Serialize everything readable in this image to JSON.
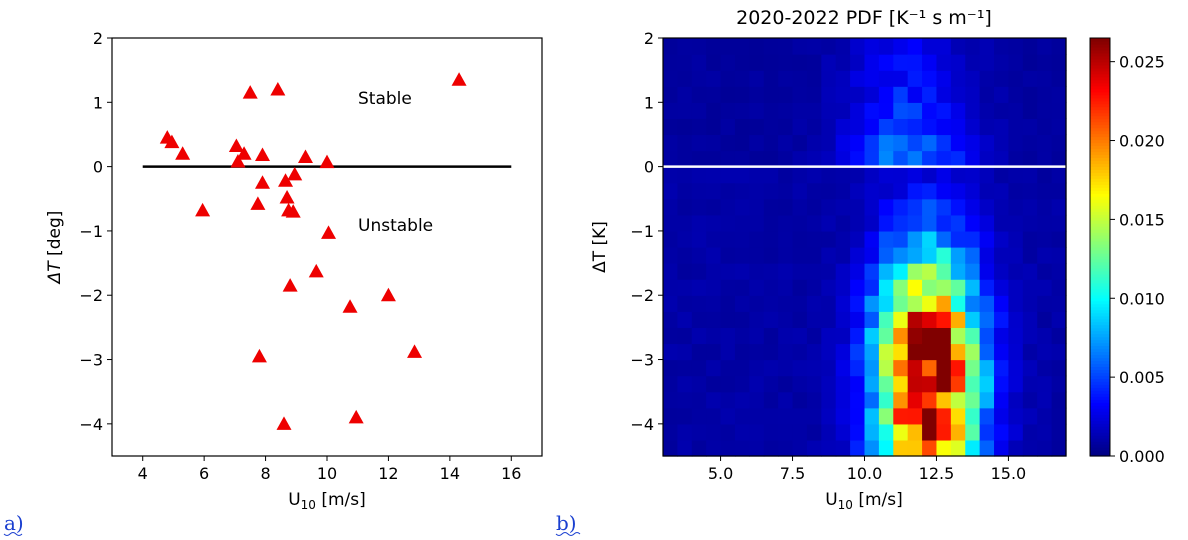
{
  "panel_a": {
    "letter": "a)",
    "annotation_stable": "Stable",
    "annotation_unstable": "Unstable",
    "xlabel_main": "U",
    "xlabel_sub": "10",
    "xlabel_unit": " [m/s]",
    "ylabel_symbol": "ΔT",
    "ylabel_unit": " [deg]"
  },
  "panel_b": {
    "letter": "b)",
    "title": "2020-2022 PDF [K⁻¹ s m⁻¹]",
    "xlabel_main": "U",
    "xlabel_sub": "10",
    "xlabel_unit": " [m/s]",
    "ylabel": "ΔT [K]"
  },
  "colors": {
    "marker": "#ee0000",
    "zero_line_a": "#000000",
    "zero_line_b": "#ffffff",
    "colormap": "jet",
    "accent_letter": "#1a3fd0"
  },
  "chart_data": [
    {
      "type": "scatter",
      "marker": "triangle",
      "xlim": [
        3,
        17
      ],
      "ylim": [
        -4.5,
        2
      ],
      "xticks": [
        "4",
        "6",
        "8",
        "10",
        "12",
        "14",
        "16"
      ],
      "xtick_values": [
        4,
        6,
        8,
        10,
        12,
        14,
        16
      ],
      "yticks": [
        "−4",
        "−3",
        "−2",
        "−1",
        "0",
        "1",
        "2"
      ],
      "ytick_values": [
        -4,
        -3,
        -2,
        -1,
        0,
        1,
        2
      ],
      "reference_line": {
        "y": 0,
        "x_from": 4,
        "x_to": 16
      },
      "annotations": [
        {
          "text": "Stable",
          "x": 11.8,
          "y": 1.0
        },
        {
          "text": "Unstable",
          "x": 11.8,
          "y": -0.95
        }
      ],
      "points": [
        {
          "x": 4.8,
          "y": 0.45
        },
        {
          "x": 4.95,
          "y": 0.38
        },
        {
          "x": 5.3,
          "y": 0.2
        },
        {
          "x": 5.95,
          "y": -0.68
        },
        {
          "x": 7.05,
          "y": 0.32
        },
        {
          "x": 7.1,
          "y": 0.08
        },
        {
          "x": 7.3,
          "y": 0.2
        },
        {
          "x": 7.5,
          "y": 1.15
        },
        {
          "x": 7.75,
          "y": -0.58
        },
        {
          "x": 7.8,
          "y": -2.95
        },
        {
          "x": 7.9,
          "y": 0.18
        },
        {
          "x": 7.9,
          "y": -0.25
        },
        {
          "x": 8.4,
          "y": 1.2
        },
        {
          "x": 8.6,
          "y": -4.0
        },
        {
          "x": 8.65,
          "y": -0.22
        },
        {
          "x": 8.7,
          "y": -0.48
        },
        {
          "x": 8.75,
          "y": -0.68
        },
        {
          "x": 8.8,
          "y": -1.85
        },
        {
          "x": 8.9,
          "y": -0.7
        },
        {
          "x": 8.95,
          "y": -0.12
        },
        {
          "x": 9.3,
          "y": 0.15
        },
        {
          "x": 9.65,
          "y": -1.63
        },
        {
          "x": 10.0,
          "y": 0.07
        },
        {
          "x": 10.05,
          "y": -1.03
        },
        {
          "x": 10.75,
          "y": -2.18
        },
        {
          "x": 10.95,
          "y": -3.9
        },
        {
          "x": 12.0,
          "y": -2.0
        },
        {
          "x": 12.85,
          "y": -2.88
        },
        {
          "x": 14.3,
          "y": 1.35
        }
      ]
    },
    {
      "type": "heatmap",
      "title": "2020-2022 PDF [K⁻¹ s m⁻¹]",
      "xlim": [
        3,
        17
      ],
      "ylim": [
        -4.5,
        2
      ],
      "x_bin_width": 0.5,
      "y_bin_width": 0.25,
      "xticks": [
        "5.0",
        "7.5",
        "10.0",
        "12.5",
        "15.0"
      ],
      "xtick_values": [
        5,
        7.5,
        10,
        12.5,
        15
      ],
      "yticks": [
        "−4",
        "−3",
        "−2",
        "−1",
        "0",
        "1",
        "2"
      ],
      "ytick_values": [
        -4,
        -3,
        -2,
        -1,
        0,
        1,
        2
      ],
      "reference_line": {
        "y": 0
      },
      "colorbar": {
        "vmin": 0,
        "vmax": 0.0265,
        "ticks": [
          "0.000",
          "0.005",
          "0.010",
          "0.015",
          "0.020",
          "0.025"
        ],
        "tick_values": [
          0,
          0.005,
          0.01,
          0.015,
          0.02,
          0.025
        ]
      },
      "stable_peak_x": 11.5,
      "stable_peak": 0.0065,
      "stable_width": 2.0,
      "unstable_peak_x": 12.2,
      "unstable_peak_y": -3.3,
      "unstable_peak": 0.026,
      "unstable_width_x": 1.7,
      "unstable_width_y": 1.9
    }
  ]
}
